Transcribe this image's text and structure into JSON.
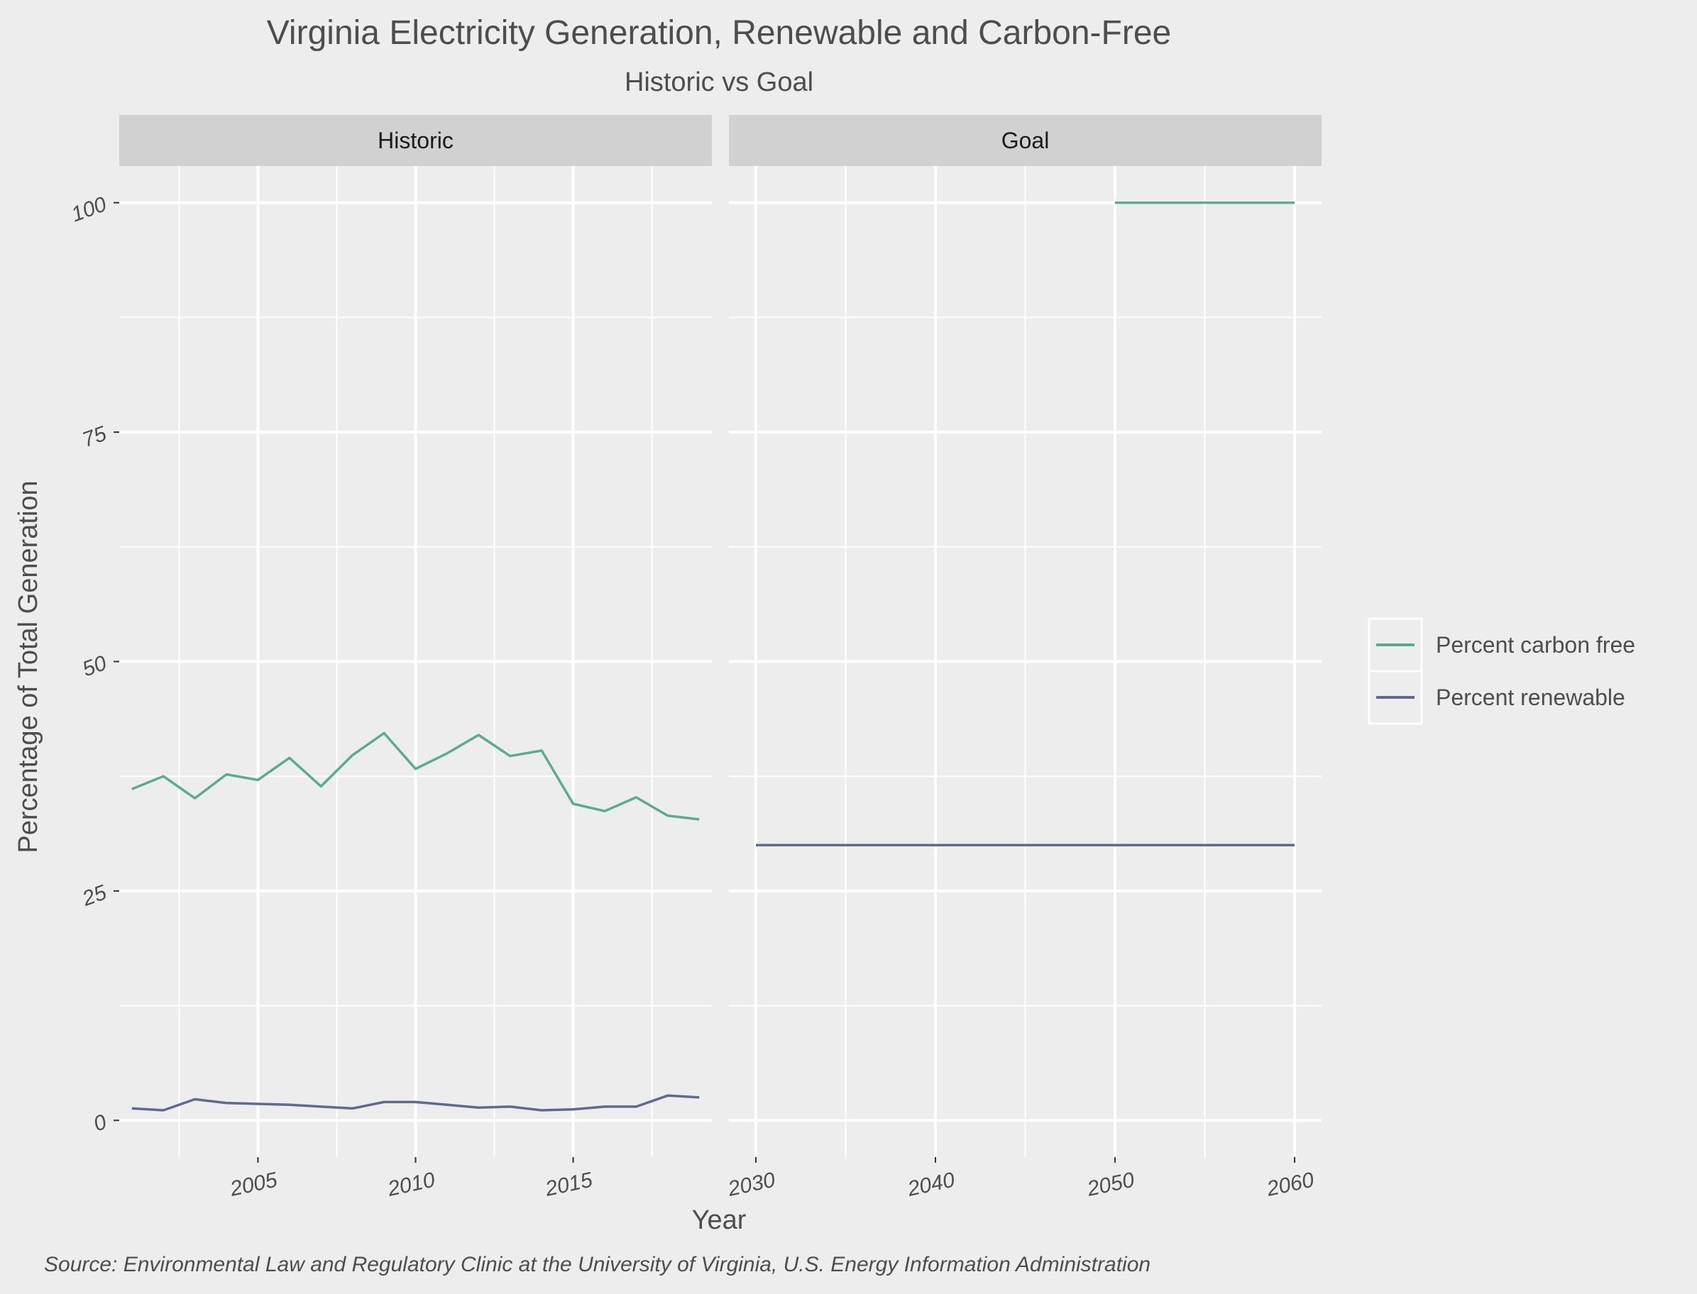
{
  "title": "Virginia Electricity Generation, Renewable and Carbon-Free",
  "subtitle": "Historic vs Goal",
  "caption": "Source: Environmental Law and Regulatory Clinic at the University of Virginia, U.S. Energy Information Administration",
  "colors": {
    "carbon_free": "#57ad92",
    "renewable": "#5e6a8e",
    "panel_bg": "#ededed",
    "strip_bg": "#d1d1d1",
    "grid": "#ffffff"
  },
  "legend": [
    {
      "label": "Percent carbon free",
      "color": "#57ad92"
    },
    {
      "label": "Percent renewable",
      "color": "#5e6a8e"
    }
  ],
  "chart_data": {
    "type": "line",
    "ylabel": "Percentage of Total Generation",
    "xlabel": "Year",
    "ylim": [
      -4,
      104
    ],
    "yticks": [
      0,
      25,
      50,
      75,
      100
    ],
    "grid": true,
    "legend_position": "right",
    "panels": [
      {
        "strip": "Historic",
        "xlim": [
          2000.6,
          2019.4
        ],
        "xticks": [
          2005,
          2010,
          2015
        ],
        "series": [
          {
            "name": "Percent carbon free",
            "x": [
              2001,
              2002,
              2003,
              2004,
              2005,
              2006,
              2007,
              2008,
              2009,
              2010,
              2011,
              2012,
              2013,
              2014,
              2015,
              2016,
              2017,
              2018,
              2019
            ],
            "y": [
              36.1,
              37.5,
              35.1,
              37.7,
              37.1,
              39.5,
              36.4,
              39.8,
              42.2,
              38.3,
              40.0,
              42.0,
              39.7,
              40.3,
              34.5,
              33.7,
              35.2,
              33.2,
              32.8
            ]
          },
          {
            "name": "Percent renewable",
            "x": [
              2001,
              2002,
              2003,
              2004,
              2005,
              2006,
              2007,
              2008,
              2009,
              2010,
              2011,
              2012,
              2013,
              2014,
              2015,
              2016,
              2017,
              2018,
              2019
            ],
            "y": [
              1.3,
              1.1,
              2.3,
              1.9,
              1.8,
              1.7,
              1.5,
              1.3,
              2.0,
              2.0,
              1.7,
              1.4,
              1.5,
              1.1,
              1.2,
              1.5,
              1.5,
              2.7,
              2.5
            ]
          }
        ]
      },
      {
        "strip": "Goal",
        "xlim": [
          2028.5,
          2061.5
        ],
        "xticks": [
          2030,
          2040,
          2050,
          2060
        ],
        "series": [
          {
            "name": "Percent carbon free",
            "x": [
              2050,
              2060
            ],
            "y": [
              100,
              100
            ]
          },
          {
            "name": "Percent renewable",
            "x": [
              2030,
              2060
            ],
            "y": [
              30,
              30
            ]
          }
        ]
      }
    ]
  }
}
